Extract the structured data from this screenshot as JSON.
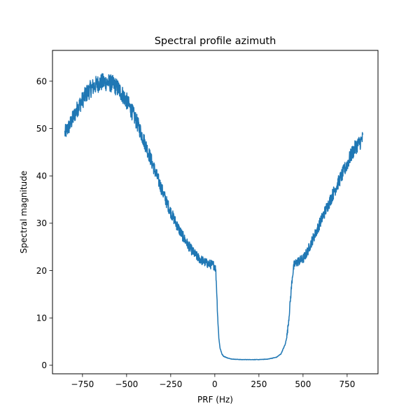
{
  "chart_data": {
    "type": "line",
    "title": "Spectral profile azimuth",
    "xlabel": "PRF (Hz)",
    "ylabel": "Spectral magnitude",
    "xlim": [
      -920,
      925
    ],
    "ylim": [
      -1.8,
      66.5
    ],
    "x_ticks": [
      -750,
      -500,
      -250,
      0,
      250,
      500,
      750
    ],
    "x_tick_labels": [
      "−750",
      "−500",
      "−250",
      "0",
      "250",
      "500",
      "750"
    ],
    "y_ticks": [
      0,
      10,
      20,
      30,
      40,
      50,
      60
    ],
    "y_tick_labels": [
      "0",
      "10",
      "20",
      "30",
      "40",
      "50",
      "60"
    ],
    "grid": false,
    "legend": "none",
    "series": [
      {
        "color": "#1f77b4",
        "x": [
          -850,
          -825,
          -800,
          -775,
          -750,
          -725,
          -700,
          -675,
          -650,
          -625,
          -600,
          -575,
          -550,
          -525,
          -500,
          -475,
          -450,
          -425,
          -400,
          -375,
          -350,
          -325,
          -300,
          -275,
          -250,
          -225,
          -200,
          -175,
          -150,
          -125,
          -100,
          -75,
          -50,
          -25,
          -10,
          0,
          5,
          10,
          15,
          20,
          25,
          30,
          40,
          50,
          75,
          100,
          150,
          200,
          250,
          300,
          350,
          375,
          400,
          410,
          420,
          430,
          440,
          450,
          460,
          475,
          500,
          525,
          550,
          575,
          600,
          625,
          650,
          675,
          700,
          725,
          750,
          775,
          800,
          825,
          840
        ],
        "y": [
          49,
          50.5,
          52.5,
          54.5,
          56,
          57.5,
          58.5,
          59.2,
          59.7,
          59.8,
          59.7,
          59.3,
          58.5,
          57.3,
          55.8,
          54,
          52,
          49.8,
          47.3,
          44.8,
          42.2,
          39.6,
          37.1,
          34.6,
          32.4,
          30.4,
          28.5,
          26.8,
          25.3,
          24,
          22.9,
          22.2,
          21.6,
          21.3,
          21.2,
          21,
          20.2,
          16.5,
          11.5,
          7.5,
          5,
          3.6,
          2.4,
          1.9,
          1.5,
          1.3,
          1.2,
          1.2,
          1.2,
          1.3,
          1.7,
          2.4,
          4.5,
          6.5,
          10,
          14.5,
          19,
          21.2,
          21.6,
          22,
          22.4,
          24,
          26.2,
          28.2,
          30.4,
          32.5,
          34.5,
          36.6,
          38.6,
          40.5,
          42.5,
          44.6,
          46.2,
          47.2,
          48
        ]
      }
    ]
  }
}
